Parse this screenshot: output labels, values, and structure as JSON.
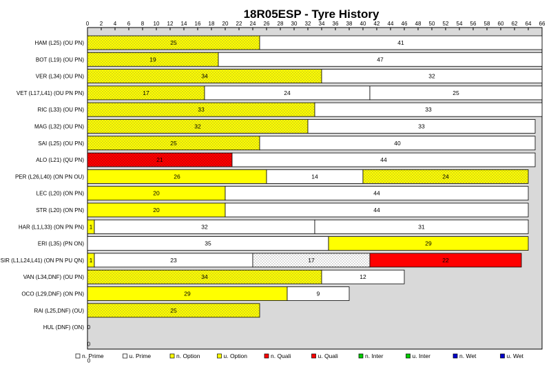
{
  "chart_data": {
    "type": "bar",
    "title": "18R05ESP - Tyre History",
    "orientation": "horizontal-stacked",
    "xlim": [
      0,
      66
    ],
    "x_ticks": [
      0,
      2,
      4,
      6,
      8,
      10,
      12,
      14,
      16,
      18,
      20,
      22,
      24,
      26,
      28,
      30,
      32,
      34,
      36,
      38,
      40,
      42,
      44,
      46,
      48,
      50,
      52,
      54,
      56,
      58,
      60,
      62,
      64,
      66
    ],
    "grid": false,
    "legend_position": "bottom",
    "colors": {
      "Prime": "#ffffff",
      "Option": "#ffff00",
      "Quali": "#ff0000",
      "Inter": "#00cc00",
      "Wet": "#0000cc",
      "plot_bg": "#d9d9d9"
    },
    "legend": [
      {
        "label": "n. Prime",
        "compound": "Prime",
        "used": false
      },
      {
        "label": "u. Prime",
        "compound": "Prime",
        "used": true
      },
      {
        "label": "n. Option",
        "compound": "Option",
        "used": false
      },
      {
        "label": "u. Option",
        "compound": "Option",
        "used": true
      },
      {
        "label": "n. Quali",
        "compound": "Quali",
        "used": false
      },
      {
        "label": "u. Quali",
        "compound": "Quali",
        "used": true
      },
      {
        "label": "n. Inter",
        "compound": "Inter",
        "used": false
      },
      {
        "label": "u. Inter",
        "compound": "Inter",
        "used": true
      },
      {
        "label": "n. Wet",
        "compound": "Wet",
        "used": false
      },
      {
        "label": "u. Wet",
        "compound": "Wet",
        "used": true
      }
    ],
    "rows": [
      {
        "label": "HAM (L25) (OU PN)",
        "stints": [
          {
            "laps": 25,
            "compound": "Option",
            "used": true
          },
          {
            "laps": 41,
            "compound": "Prime",
            "used": false
          }
        ]
      },
      {
        "label": "BOT (L19) (OU PN)",
        "stints": [
          {
            "laps": 19,
            "compound": "Option",
            "used": true
          },
          {
            "laps": 47,
            "compound": "Prime",
            "used": false
          }
        ]
      },
      {
        "label": "VER (L34) (OU PN)",
        "stints": [
          {
            "laps": 34,
            "compound": "Option",
            "used": true
          },
          {
            "laps": 32,
            "compound": "Prime",
            "used": false
          }
        ]
      },
      {
        "label": "VET (L17,L41) (OU PN PN)",
        "stints": [
          {
            "laps": 17,
            "compound": "Option",
            "used": true
          },
          {
            "laps": 24,
            "compound": "Prime",
            "used": false
          },
          {
            "laps": 25,
            "compound": "Prime",
            "used": false
          }
        ]
      },
      {
        "label": "RIC (L33) (OU PN)",
        "stints": [
          {
            "laps": 33,
            "compound": "Option",
            "used": true
          },
          {
            "laps": 33,
            "compound": "Prime",
            "used": false
          }
        ]
      },
      {
        "label": "MAG (L32) (OU PN)",
        "stints": [
          {
            "laps": 32,
            "compound": "Option",
            "used": true
          },
          {
            "laps": 33,
            "compound": "Prime",
            "used": false
          }
        ]
      },
      {
        "label": "SAI (L25) (OU PN)",
        "stints": [
          {
            "laps": 25,
            "compound": "Option",
            "used": true
          },
          {
            "laps": 40,
            "compound": "Prime",
            "used": false
          }
        ]
      },
      {
        "label": "ALO (L21) (QU PN)",
        "stints": [
          {
            "laps": 21,
            "compound": "Quali",
            "used": true
          },
          {
            "laps": 44,
            "compound": "Prime",
            "used": false
          }
        ]
      },
      {
        "label": "PER (L26,L40) (ON PN OU)",
        "stints": [
          {
            "laps": 26,
            "compound": "Option",
            "used": false
          },
          {
            "laps": 14,
            "compound": "Prime",
            "used": false
          },
          {
            "laps": 24,
            "compound": "Option",
            "used": true
          }
        ]
      },
      {
        "label": "LEC (L20) (ON PN)",
        "stints": [
          {
            "laps": 20,
            "compound": "Option",
            "used": false
          },
          {
            "laps": 44,
            "compound": "Prime",
            "used": false
          }
        ]
      },
      {
        "label": "STR (L20) (ON PN)",
        "stints": [
          {
            "laps": 20,
            "compound": "Option",
            "used": false
          },
          {
            "laps": 44,
            "compound": "Prime",
            "used": false
          }
        ]
      },
      {
        "label": "HAR (L1,L33) (ON PN PN)",
        "stints": [
          {
            "laps": 1,
            "compound": "Option",
            "used": false
          },
          {
            "laps": 32,
            "compound": "Prime",
            "used": false
          },
          {
            "laps": 31,
            "compound": "Prime",
            "used": false
          }
        ]
      },
      {
        "label": "ERI (L35) (PN ON)",
        "stints": [
          {
            "laps": 35,
            "compound": "Prime",
            "used": false
          },
          {
            "laps": 29,
            "compound": "Option",
            "used": false
          }
        ]
      },
      {
        "label": "SIR (L1,L24,L41) (ON PN PU QN)",
        "stints": [
          {
            "laps": 1,
            "compound": "Option",
            "used": false
          },
          {
            "laps": 23,
            "compound": "Prime",
            "used": false
          },
          {
            "laps": 17,
            "compound": "Prime",
            "used": true
          },
          {
            "laps": 22,
            "compound": "Quali",
            "used": false
          }
        ]
      },
      {
        "label": "VAN (L34,DNF) (OU PN)",
        "stints": [
          {
            "laps": 34,
            "compound": "Option",
            "used": true
          },
          {
            "laps": 12,
            "compound": "Prime",
            "used": false
          }
        ]
      },
      {
        "label": "OCO (L29,DNF) (ON PN)",
        "stints": [
          {
            "laps": 29,
            "compound": "Option",
            "used": false
          },
          {
            "laps": 9,
            "compound": "Prime",
            "used": false
          }
        ]
      },
      {
        "label": "RAI (L25,DNF) (OU)",
        "stints": [
          {
            "laps": 25,
            "compound": "Option",
            "used": true
          }
        ]
      },
      {
        "label": "HUL (DNF) (ON)",
        "stints": []
      },
      {
        "label": "",
        "stints": []
      },
      {
        "label": "",
        "stints": []
      }
    ],
    "empty_row_values": [
      "0",
      "0",
      "0"
    ]
  }
}
